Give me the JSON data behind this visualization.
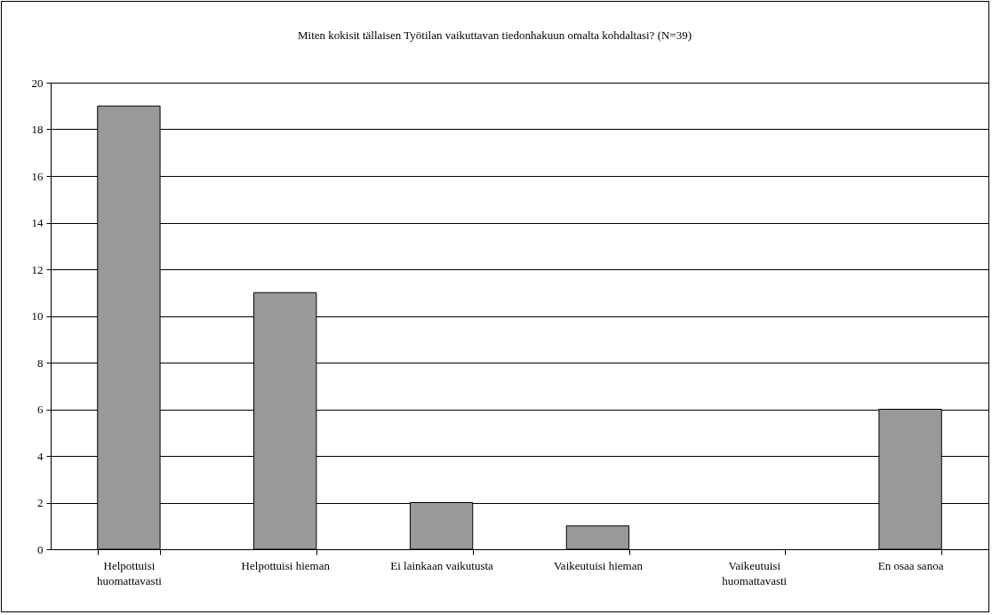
{
  "chart_data": {
    "type": "bar",
    "title": "Miten kokisit tällaisen Työtilan vaikuttavan tiedonhakuun omalta kohdaltasi? (N=39)",
    "categories": [
      "Helpottuisi huomattavasti",
      "Helpottuisi hieman",
      "Ei lainkaan vaikutusta",
      "Vaikeutuisi hieman",
      "Vaikeutuisi huomattavasti",
      "En osaa sanoa"
    ],
    "values": [
      19,
      11,
      2,
      1,
      0,
      6
    ],
    "color": "#999999",
    "ylim": [
      0,
      20
    ],
    "yticks": [
      0,
      2,
      4,
      6,
      8,
      10,
      12,
      14,
      16,
      18,
      20
    ],
    "grid": "y"
  }
}
